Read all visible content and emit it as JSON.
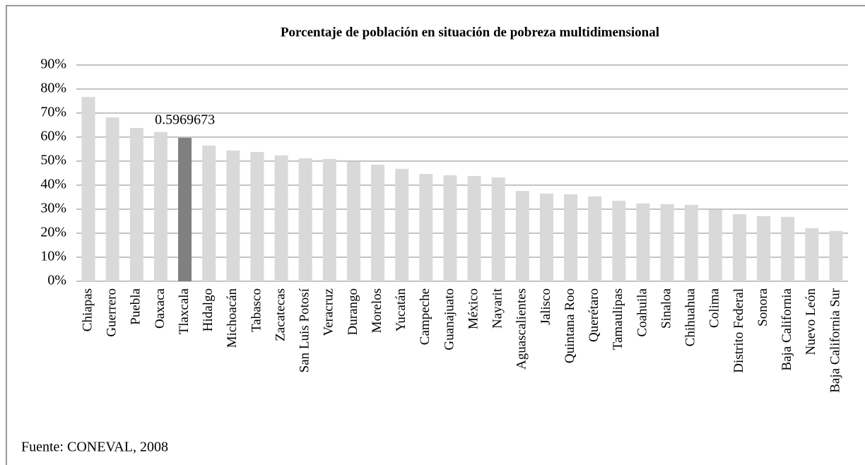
{
  "chart_data": {
    "type": "bar",
    "title": "Porcentaje de población en situación de pobreza multidimensional",
    "source": "Fuente:  CONEVAL, 2008",
    "categories": [
      "Chiapas",
      "Guerrero",
      "Puebla",
      "Oaxaca",
      "Tlaxcala",
      "Hidalgo",
      "Michoacán",
      "Tabasco",
      "Zacatecas",
      "San Luis Potosí",
      "Veracruz",
      "Durango",
      "Morelos",
      "Yucatán",
      "Campeche",
      "Guanajuato",
      "México",
      "Nayarit",
      "Aguascalientes",
      "Jalisco",
      "Quintana Roo",
      "Querétaro",
      "Tamaulipas",
      "Coahuila",
      "Sinaloa",
      "Chihuahua",
      "Colima",
      "Distrito Federal",
      "Sonora",
      "Baja California",
      "Nuevo León",
      "Baja California Sur"
    ],
    "values": [
      76.7,
      68.2,
      63.8,
      62.1,
      59.69673,
      56.5,
      54.4,
      53.8,
      52.4,
      51.2,
      50.9,
      49.7,
      48.5,
      46.8,
      44.7,
      44.1,
      43.8,
      43.2,
      37.6,
      36.5,
      36.2,
      35.3,
      33.5,
      32.4,
      32.1,
      31.8,
      29.7,
      27.9,
      27.1,
      26.8,
      22.1,
      20.9
    ],
    "value_labels": [
      null,
      null,
      null,
      null,
      "0.5969673",
      null,
      null,
      null,
      null,
      null,
      null,
      null,
      null,
      null,
      null,
      null,
      null,
      null,
      null,
      null,
      null,
      null,
      null,
      null,
      null,
      null,
      null,
      null,
      null,
      null,
      null,
      null
    ],
    "colors": [
      "#d9d9d9",
      "#d9d9d9",
      "#d9d9d9",
      "#d9d9d9",
      "#808080",
      "#d9d9d9",
      "#d9d9d9",
      "#d9d9d9",
      "#d9d9d9",
      "#d9d9d9",
      "#d9d9d9",
      "#d9d9d9",
      "#d9d9d9",
      "#d9d9d9",
      "#d9d9d9",
      "#d9d9d9",
      "#d9d9d9",
      "#d9d9d9",
      "#d9d9d9",
      "#d9d9d9",
      "#d9d9d9",
      "#d9d9d9",
      "#d9d9d9",
      "#d9d9d9",
      "#d9d9d9",
      "#d9d9d9",
      "#d9d9d9",
      "#d9d9d9",
      "#d9d9d9",
      "#d9d9d9",
      "#d9d9d9",
      "#d9d9d9"
    ],
    "ylim": [
      0,
      90
    ],
    "yticks": [
      {
        "value": 0,
        "label": "0%"
      },
      {
        "value": 10,
        "label": "10%"
      },
      {
        "value": 20,
        "label": "20%"
      },
      {
        "value": 30,
        "label": "30%"
      },
      {
        "value": 40,
        "label": "40%"
      },
      {
        "value": 50,
        "label": "50%"
      },
      {
        "value": 60,
        "label": "60%"
      },
      {
        "value": 70,
        "label": "70%"
      },
      {
        "value": 80,
        "label": "80%"
      },
      {
        "value": 90,
        "label": "90%"
      }
    ],
    "grid": true
  }
}
